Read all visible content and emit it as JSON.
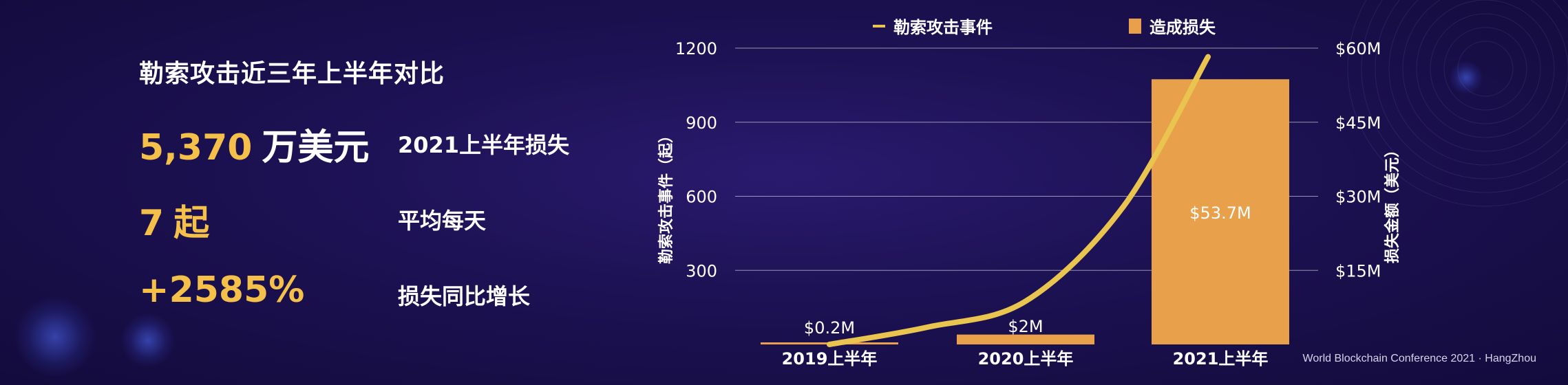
{
  "stats": {
    "title": "勒索攻击近三年上半年对比",
    "rows": [
      {
        "value": "5,370",
        "unit": "万美元",
        "label": "2021上半年损失"
      },
      {
        "value": "7",
        "unit": "起",
        "label": "平均每天"
      },
      {
        "value": "+2585%",
        "unit": "",
        "label": "损失同比增长"
      }
    ]
  },
  "chart_data": {
    "type": "bar",
    "categories": [
      "2019上半年",
      "2020上半年",
      "2021上半年"
    ],
    "series": [
      {
        "name": "造成损失",
        "kind": "bar",
        "axis": "right",
        "values": [
          0.2,
          2,
          53.7
        ],
        "labels": [
          "$0.2M",
          "$2M",
          "$53.7M"
        ],
        "color": "#e8a04a"
      },
      {
        "name": "勒索攻击事件",
        "kind": "line",
        "axis": "left",
        "points": [
          [
            0,
            0
          ],
          [
            0.5,
            70
          ],
          [
            1,
            175
          ],
          [
            1.5,
            560
          ],
          [
            1.93,
            1165
          ]
        ],
        "color": "#e9c550"
      }
    ],
    "ylabel_left": "勒索攻击事件（起）",
    "ylabel_right": "损失金额（美元）",
    "y_left": {
      "lim": [
        0,
        1200
      ],
      "ticks": [
        300,
        600,
        900,
        1200
      ],
      "tick_labels": [
        "300",
        "600",
        "900",
        "1200"
      ]
    },
    "y_right": {
      "lim": [
        0,
        60
      ],
      "ticks": [
        15,
        30,
        45,
        60
      ],
      "tick_labels": [
        "$15M",
        "$30M",
        "$45M",
        "$60M"
      ]
    },
    "grid": true,
    "legend_position": "top"
  },
  "footer": "World Blockchain Conference 2021 · HangZhou"
}
